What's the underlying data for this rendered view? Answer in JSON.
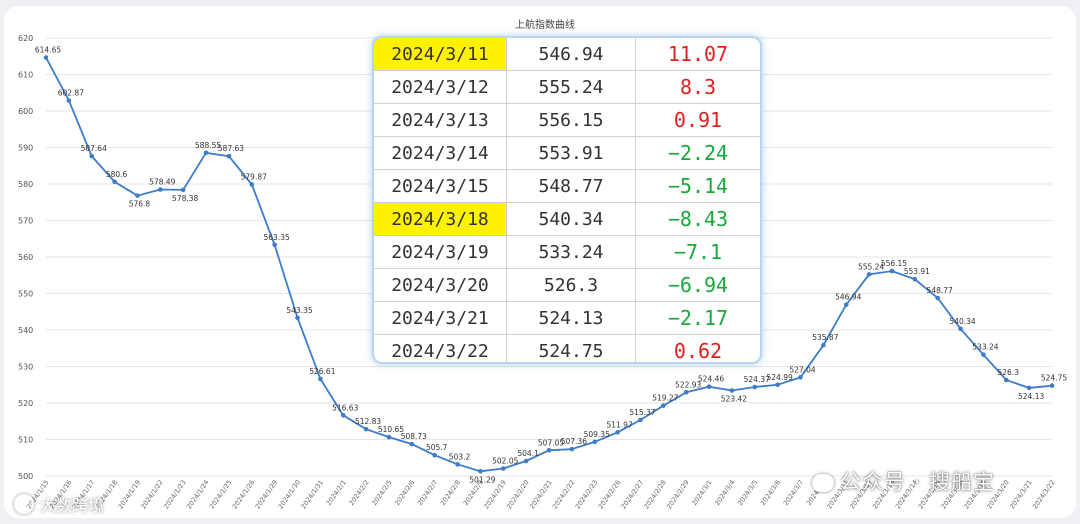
{
  "chart_data": {
    "type": "line",
    "title": "上航指数曲线",
    "ylim": [
      500,
      620
    ],
    "yticks": [
      500,
      510,
      520,
      530,
      540,
      550,
      560,
      570,
      580,
      590,
      600,
      610,
      620
    ],
    "grid": true,
    "line_color": "#3d7cc9",
    "series": [
      {
        "x": [
          "2024/1/15",
          "2024/1/16",
          "2024/1/17",
          "2024/1/18",
          "2024/1/19",
          "2024/1/22",
          "2024/1/23",
          "2024/1/24",
          "2024/1/25",
          "2024/1/26",
          "2024/1/29",
          "2024/1/30",
          "2024/1/31",
          "2024/2/1",
          "2024/2/2",
          "2024/2/5",
          "2024/2/6",
          "2024/2/7",
          "2024/2/8",
          "2024/2/9",
          "2024/2/19",
          "2024/2/20",
          "2024/2/21",
          "2024/2/22",
          "2024/2/23",
          "2024/2/26",
          "2024/2/27",
          "2024/2/28",
          "2024/2/29",
          "2024/3/1",
          "2024/3/4",
          "2024/3/5",
          "2024/3/6",
          "2024/3/7",
          "2024/3/8",
          "2024/3/11",
          "2024/3/12",
          "2024/3/13",
          "2024/3/14",
          "2024/3/15",
          "2024/3/18",
          "2024/3/19",
          "2024/3/20",
          "2024/3/21",
          "2024/3/22"
        ],
        "values": [
          614.65,
          602.87,
          587.64,
          580.6,
          576.8,
          578.49,
          578.38,
          588.55,
          587.63,
          579.87,
          563.35,
          543.35,
          526.61,
          516.63,
          512.83,
          510.65,
          508.73,
          505.7,
          503.2,
          501.29,
          502.05,
          504.1,
          507.05,
          507.36,
          509.35,
          511.97,
          515.37,
          519.27,
          522.93,
          524.46,
          523.42,
          524.37,
          524.99,
          527.04,
          535.87,
          546.94,
          555.24,
          556.15,
          553.91,
          548.77,
          540.34,
          533.24,
          526.3,
          524.13,
          524.75
        ]
      }
    ]
  },
  "table": {
    "rows": [
      {
        "date": "2024/3/11",
        "value": "546.94",
        "change": "11.07",
        "dir": "up",
        "highlight": true
      },
      {
        "date": "2024/3/12",
        "value": "555.24",
        "change": "8.3",
        "dir": "up",
        "highlight": false
      },
      {
        "date": "2024/3/13",
        "value": "556.15",
        "change": "0.91",
        "dir": "up",
        "highlight": false
      },
      {
        "date": "2024/3/14",
        "value": "553.91",
        "change": "−2.24",
        "dir": "down",
        "highlight": false
      },
      {
        "date": "2024/3/15",
        "value": "548.77",
        "change": "−5.14",
        "dir": "down",
        "highlight": false
      },
      {
        "date": "2024/3/18",
        "value": "540.34",
        "change": "−8.43",
        "dir": "down",
        "highlight": true
      },
      {
        "date": "2024/3/19",
        "value": "533.24",
        "change": "−7.1",
        "dir": "down",
        "highlight": false
      },
      {
        "date": "2024/3/20",
        "value": "526.3",
        "change": "−6.94",
        "dir": "down",
        "highlight": false
      },
      {
        "date": "2024/3/21",
        "value": "524.13",
        "change": "−2.17",
        "dir": "down",
        "highlight": false
      },
      {
        "date": "2024/3/22",
        "value": "524.75",
        "change": "0.62",
        "dir": "up",
        "highlight": false
      }
    ],
    "colors": {
      "up": "#e02020",
      "down": "#1aa83a",
      "highlight": "#fff200"
    }
  },
  "watermarks": {
    "right": "公众号 · 搜船宝",
    "left": "大数跨境"
  }
}
